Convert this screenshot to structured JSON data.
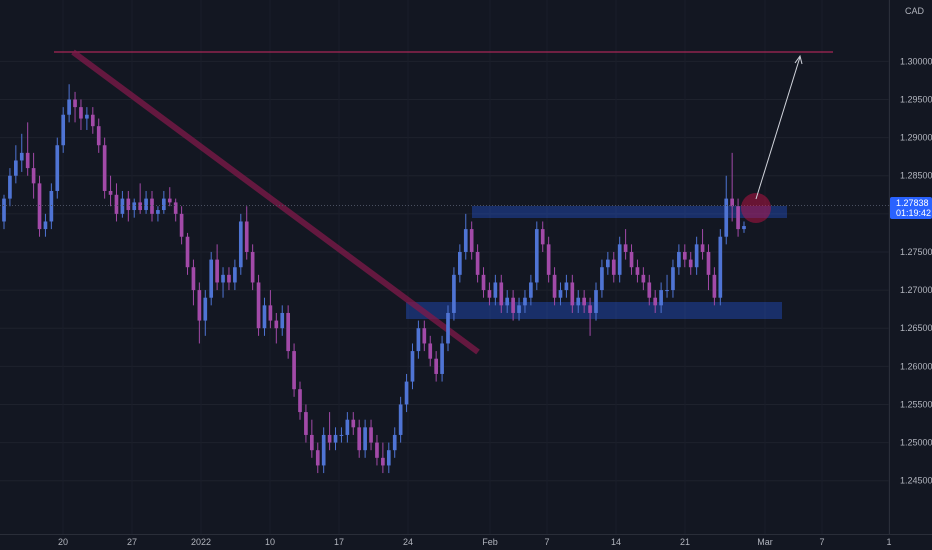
{
  "chart_data": {
    "type": "candlestick",
    "currency": "CAD",
    "y_ticks": [
      "1.30000",
      "1.29500",
      "1.29000",
      "1.28500",
      "1.28000",
      "1.27500",
      "1.27000",
      "1.26500",
      "1.26000",
      "1.25500",
      "1.25000",
      "1.24500"
    ],
    "ylim": [
      1.2405,
      1.307
    ],
    "x_ticks": [
      "20",
      "27",
      "2022",
      "10",
      "17",
      "24",
      "Feb",
      "7",
      "14",
      "21",
      "Mar",
      "7",
      "1"
    ],
    "last_price": "1.27838",
    "countdown": "01:19:42",
    "candles": [
      [
        1.279,
        1.2825,
        1.278,
        1.282
      ],
      [
        1.282,
        1.286,
        1.281,
        1.285
      ],
      [
        1.285,
        1.289,
        1.284,
        1.287
      ],
      [
        1.287,
        1.2905,
        1.2855,
        1.288
      ],
      [
        1.288,
        1.292,
        1.285,
        1.286
      ],
      [
        1.286,
        1.288,
        1.282,
        1.284
      ],
      [
        1.284,
        1.285,
        1.277,
        1.278
      ],
      [
        1.278,
        1.28,
        1.277,
        1.279
      ],
      [
        1.279,
        1.284,
        1.278,
        1.283
      ],
      [
        1.283,
        1.29,
        1.282,
        1.289
      ],
      [
        1.289,
        1.294,
        1.288,
        1.293
      ],
      [
        1.293,
        1.297,
        1.292,
        1.295
      ],
      [
        1.295,
        1.296,
        1.292,
        1.294
      ],
      [
        1.294,
        1.295,
        1.291,
        1.2925
      ],
      [
        1.2925,
        1.294,
        1.291,
        1.293
      ],
      [
        1.293,
        1.294,
        1.2905,
        1.2915
      ],
      [
        1.2915,
        1.2925,
        1.288,
        1.289
      ],
      [
        1.289,
        1.29,
        1.282,
        1.283
      ],
      [
        1.283,
        1.285,
        1.281,
        1.2825
      ],
      [
        1.2825,
        1.284,
        1.279,
        1.28
      ],
      [
        1.28,
        1.283,
        1.2795,
        1.282
      ],
      [
        1.282,
        1.283,
        1.279,
        1.2805
      ],
      [
        1.2805,
        1.282,
        1.2795,
        1.2815
      ],
      [
        1.2815,
        1.284,
        1.28,
        1.2805
      ],
      [
        1.2805,
        1.283,
        1.28,
        1.282
      ],
      [
        1.282,
        1.283,
        1.279,
        1.28
      ],
      [
        1.28,
        1.281,
        1.279,
        1.2805
      ],
      [
        1.2805,
        1.283,
        1.28,
        1.282
      ],
      [
        1.282,
        1.2835,
        1.281,
        1.2815
      ],
      [
        1.2815,
        1.282,
        1.279,
        1.28
      ],
      [
        1.28,
        1.281,
        1.276,
        1.277
      ],
      [
        1.277,
        1.2775,
        1.272,
        1.273
      ],
      [
        1.273,
        1.274,
        1.268,
        1.27
      ],
      [
        1.27,
        1.271,
        1.263,
        1.266
      ],
      [
        1.266,
        1.27,
        1.264,
        1.269
      ],
      [
        1.269,
        1.275,
        1.268,
        1.274
      ],
      [
        1.274,
        1.276,
        1.27,
        1.271
      ],
      [
        1.271,
        1.273,
        1.269,
        1.272
      ],
      [
        1.272,
        1.273,
        1.27,
        1.271
      ],
      [
        1.271,
        1.274,
        1.27,
        1.273
      ],
      [
        1.273,
        1.28,
        1.272,
        1.279
      ],
      [
        1.279,
        1.281,
        1.274,
        1.275
      ],
      [
        1.275,
        1.276,
        1.27,
        1.271
      ],
      [
        1.271,
        1.272,
        1.264,
        1.265
      ],
      [
        1.265,
        1.269,
        1.264,
        1.268
      ],
      [
        1.268,
        1.27,
        1.265,
        1.266
      ],
      [
        1.266,
        1.267,
        1.263,
        1.265
      ],
      [
        1.265,
        1.268,
        1.264,
        1.267
      ],
      [
        1.267,
        1.268,
        1.261,
        1.262
      ],
      [
        1.262,
        1.263,
        1.256,
        1.257
      ],
      [
        1.257,
        1.258,
        1.253,
        1.254
      ],
      [
        1.254,
        1.255,
        1.25,
        1.251
      ],
      [
        1.251,
        1.253,
        1.248,
        1.249
      ],
      [
        1.249,
        1.25,
        1.246,
        1.247
      ],
      [
        1.247,
        1.252,
        1.246,
        1.251
      ],
      [
        1.251,
        1.254,
        1.249,
        1.25
      ],
      [
        1.25,
        1.252,
        1.249,
        1.251
      ],
      [
        1.251,
        1.252,
        1.25,
        1.251
      ],
      [
        1.251,
        1.254,
        1.25,
        1.253
      ],
      [
        1.253,
        1.254,
        1.251,
        1.252
      ],
      [
        1.252,
        1.253,
        1.248,
        1.249
      ],
      [
        1.249,
        1.253,
        1.248,
        1.252
      ],
      [
        1.252,
        1.253,
        1.249,
        1.25
      ],
      [
        1.25,
        1.251,
        1.247,
        1.248
      ],
      [
        1.248,
        1.25,
        1.246,
        1.247
      ],
      [
        1.247,
        1.25,
        1.246,
        1.249
      ],
      [
        1.249,
        1.252,
        1.248,
        1.251
      ],
      [
        1.251,
        1.256,
        1.25,
        1.255
      ],
      [
        1.255,
        1.259,
        1.254,
        1.258
      ],
      [
        1.258,
        1.263,
        1.257,
        1.262
      ],
      [
        1.262,
        1.266,
        1.261,
        1.265
      ],
      [
        1.265,
        1.266,
        1.262,
        1.263
      ],
      [
        1.263,
        1.264,
        1.26,
        1.261
      ],
      [
        1.261,
        1.262,
        1.258,
        1.259
      ],
      [
        1.259,
        1.264,
        1.258,
        1.263
      ],
      [
        1.263,
        1.268,
        1.262,
        1.267
      ],
      [
        1.267,
        1.273,
        1.266,
        1.272
      ],
      [
        1.272,
        1.276,
        1.271,
        1.275
      ],
      [
        1.275,
        1.28,
        1.274,
        1.278
      ],
      [
        1.278,
        1.279,
        1.274,
        1.275
      ],
      [
        1.275,
        1.276,
        1.271,
        1.272
      ],
      [
        1.272,
        1.273,
        1.269,
        1.27
      ],
      [
        1.27,
        1.271,
        1.268,
        1.269
      ],
      [
        1.269,
        1.272,
        1.268,
        1.271
      ],
      [
        1.271,
        1.272,
        1.267,
        1.268
      ],
      [
        1.268,
        1.27,
        1.267,
        1.269
      ],
      [
        1.269,
        1.27,
        1.266,
        1.267
      ],
      [
        1.267,
        1.269,
        1.266,
        1.268
      ],
      [
        1.268,
        1.27,
        1.267,
        1.269
      ],
      [
        1.269,
        1.272,
        1.268,
        1.271
      ],
      [
        1.271,
        1.279,
        1.27,
        1.278
      ],
      [
        1.278,
        1.279,
        1.275,
        1.276
      ],
      [
        1.276,
        1.277,
        1.271,
        1.272
      ],
      [
        1.272,
        1.273,
        1.268,
        1.269
      ],
      [
        1.269,
        1.271,
        1.268,
        1.27
      ],
      [
        1.27,
        1.272,
        1.269,
        1.271
      ],
      [
        1.271,
        1.272,
        1.267,
        1.268
      ],
      [
        1.268,
        1.27,
        1.267,
        1.269
      ],
      [
        1.269,
        1.27,
        1.267,
        1.268
      ],
      [
        1.268,
        1.269,
        1.264,
        1.267
      ],
      [
        1.267,
        1.271,
        1.266,
        1.27
      ],
      [
        1.27,
        1.274,
        1.269,
        1.273
      ],
      [
        1.273,
        1.275,
        1.272,
        1.274
      ],
      [
        1.274,
        1.275,
        1.271,
        1.272
      ],
      [
        1.272,
        1.277,
        1.271,
        1.276
      ],
      [
        1.276,
        1.278,
        1.274,
        1.275
      ],
      [
        1.275,
        1.276,
        1.272,
        1.273
      ],
      [
        1.273,
        1.274,
        1.271,
        1.272
      ],
      [
        1.272,
        1.273,
        1.27,
        1.271
      ],
      [
        1.271,
        1.272,
        1.268,
        1.269
      ],
      [
        1.269,
        1.27,
        1.267,
        1.268
      ],
      [
        1.268,
        1.271,
        1.267,
        1.27
      ],
      [
        1.27,
        1.272,
        1.269,
        1.27
      ],
      [
        1.27,
        1.274,
        1.269,
        1.273
      ],
      [
        1.273,
        1.276,
        1.272,
        1.275
      ],
      [
        1.275,
        1.276,
        1.273,
        1.274
      ],
      [
        1.274,
        1.275,
        1.272,
        1.273
      ],
      [
        1.273,
        1.277,
        1.272,
        1.276
      ],
      [
        1.276,
        1.278,
        1.274,
        1.275
      ],
      [
        1.275,
        1.276,
        1.27,
        1.272
      ],
      [
        1.272,
        1.273,
        1.268,
        1.269
      ],
      [
        1.269,
        1.278,
        1.268,
        1.277
      ],
      [
        1.277,
        1.285,
        1.276,
        1.282
      ],
      [
        1.282,
        1.288,
        1.279,
        1.281
      ],
      [
        1.281,
        1.282,
        1.277,
        1.278
      ],
      [
        1.278,
        1.279,
        1.2775,
        1.2784
      ]
    ]
  }
}
